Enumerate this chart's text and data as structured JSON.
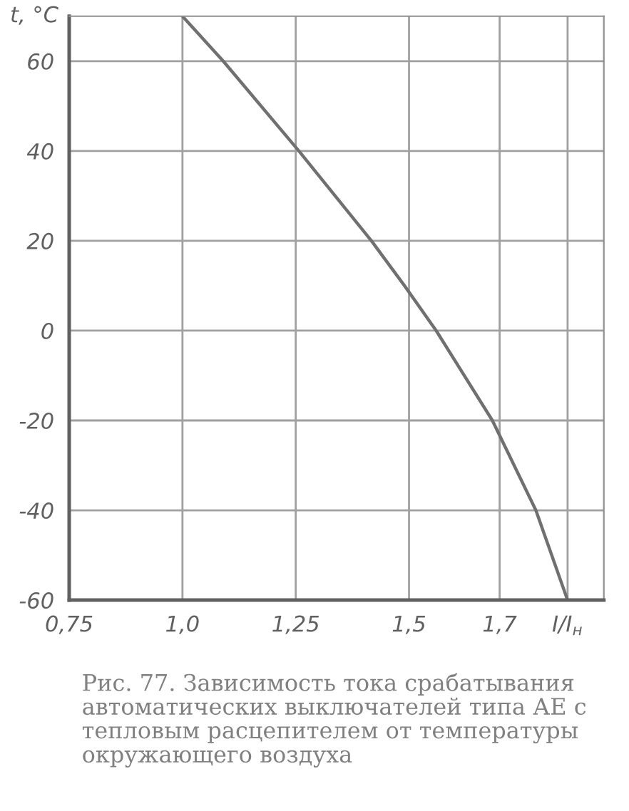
{
  "chart_data": {
    "type": "line",
    "ylabel": "t, °C",
    "x": [
      1.0,
      1.09,
      1.257,
      1.417,
      1.49,
      1.56,
      1.684,
      1.78,
      1.85
    ],
    "series": [
      {
        "color": "#707070",
        "values": [
          70,
          60,
          40,
          20,
          10,
          0,
          -20,
          -40,
          -60
        ]
      }
    ],
    "xlim": [
      0.75,
      1.93
    ],
    "ylim": [
      -60,
      70
    ],
    "xticks": [
      {
        "value": 0.75,
        "label": "0,75"
      },
      {
        "value": 1.0,
        "label": "1,0"
      },
      {
        "value": 1.25,
        "label": "1,25"
      },
      {
        "value": 1.5,
        "label": "1,5"
      },
      {
        "value": 1.7,
        "label": "1,7"
      },
      {
        "value": 1.85,
        "label": "I/I$_{н}$"
      }
    ],
    "yticks": [
      -60,
      -40,
      -20,
      0,
      20,
      40,
      60
    ],
    "grid": true,
    "annotations": [
      "Рис. 77. Зависимость тока срабатывания автоматических выключателей типа АЕ с тепловым расцепителем от температуры окружающего воздуха"
    ]
  }
}
